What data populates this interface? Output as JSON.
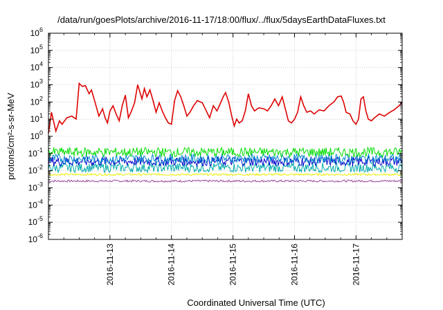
{
  "chart_data": {
    "type": "line",
    "title": "/data/run/goesPlots/archive/2016-11-17/18:00/flux/../flux/5daysEarthDataFluxes.txt",
    "xlabel": "Coordinated Universal Time (UTC)",
    "ylabel": "protons/cm²-s-sr-MeV",
    "yscale": "log",
    "ylim_exp": [
      -6,
      6
    ],
    "xlim_days": [
      12.0,
      17.75
    ],
    "y_ticks": [
      {
        "base": "10",
        "exp": "-6"
      },
      {
        "base": "10",
        "exp": "-5"
      },
      {
        "base": "10",
        "exp": "-4"
      },
      {
        "base": "10",
        "exp": "-3"
      },
      {
        "base": "10",
        "exp": "-2"
      },
      {
        "base": "10",
        "exp": "-1"
      },
      {
        "base": "10",
        "exp": "0"
      },
      {
        "base": "10",
        "exp": "1"
      },
      {
        "base": "10",
        "exp": "2"
      },
      {
        "base": "10",
        "exp": "3"
      },
      {
        "base": "10",
        "exp": "4"
      },
      {
        "base": "10",
        "exp": "5"
      },
      {
        "base": "10",
        "exp": "6"
      }
    ],
    "x_ticks": [
      {
        "day": 13,
        "label": "2016-11-13"
      },
      {
        "day": 14,
        "label": "2016-11-14"
      },
      {
        "day": 15,
        "label": "2016-11-15"
      },
      {
        "day": 16,
        "label": "2016-11-16"
      },
      {
        "day": 17,
        "label": "2016-11-17"
      }
    ],
    "grid": true,
    "series": [
      {
        "color": "#dd0000",
        "x": [
          12.0,
          12.05,
          12.12,
          12.18,
          12.22,
          12.3,
          12.38,
          12.45,
          12.5,
          12.55,
          12.6,
          12.66,
          12.7,
          12.76,
          12.82,
          12.88,
          12.92,
          12.96,
          13.0,
          13.05,
          13.1,
          13.15,
          13.2,
          13.25,
          13.3,
          13.35,
          13.4,
          13.45,
          13.52,
          13.56,
          13.6,
          13.65,
          13.7,
          13.75,
          13.8,
          13.85,
          13.9,
          13.95,
          14.0,
          14.05,
          14.1,
          14.15,
          14.2,
          14.25,
          14.3,
          14.36,
          14.42,
          14.5,
          14.55,
          14.62,
          14.68,
          14.74,
          14.8,
          14.84,
          14.88,
          14.93,
          14.98,
          15.02,
          15.06,
          15.1,
          15.15,
          15.2,
          15.25,
          15.3,
          15.35,
          15.42,
          15.5,
          15.56,
          15.62,
          15.68,
          15.74,
          15.8,
          15.86,
          15.9,
          15.95,
          16.0,
          16.05,
          16.1,
          16.15,
          16.2,
          16.26,
          16.32,
          16.4,
          16.48,
          16.56,
          16.64,
          16.7,
          16.76,
          16.8,
          16.84,
          16.9,
          16.95,
          17.0,
          17.04,
          17.08,
          17.12,
          17.16,
          17.2,
          17.25,
          17.3,
          17.38,
          17.46,
          17.55,
          17.62,
          17.7,
          17.75
        ],
        "y": [
          1.5,
          25,
          2,
          8,
          5,
          12,
          15,
          10,
          1200,
          800,
          900,
          300,
          500,
          90,
          15,
          40,
          12,
          6,
          30,
          60,
          20,
          8,
          60,
          250,
          12,
          30,
          90,
          1000,
          150,
          600,
          200,
          500,
          120,
          25,
          90,
          30,
          12,
          6,
          5,
          120,
          450,
          200,
          60,
          15,
          25,
          60,
          120,
          90,
          40,
          12,
          60,
          30,
          90,
          200,
          350,
          100,
          15,
          4,
          10,
          6,
          8,
          30,
          300,
          60,
          30,
          45,
          40,
          30,
          60,
          150,
          60,
          200,
          30,
          8,
          6,
          10,
          25,
          200,
          60,
          25,
          30,
          20,
          35,
          30,
          60,
          100,
          200,
          220,
          90,
          25,
          20,
          8,
          5,
          10,
          150,
          200,
          30,
          10,
          8,
          12,
          20,
          15,
          25,
          35,
          60,
          100
        ]
      },
      {
        "color": "#00dd00",
        "level": 0.12
      },
      {
        "color": "#0088cc",
        "level": 0.05
      },
      {
        "color": "#0000cc",
        "level": 0.035
      },
      {
        "color": "#00aaaa",
        "level": 0.015
      },
      {
        "color": "#eeee00",
        "level": 0.006
      },
      {
        "color": "#994499",
        "level": 0.0025
      }
    ]
  }
}
